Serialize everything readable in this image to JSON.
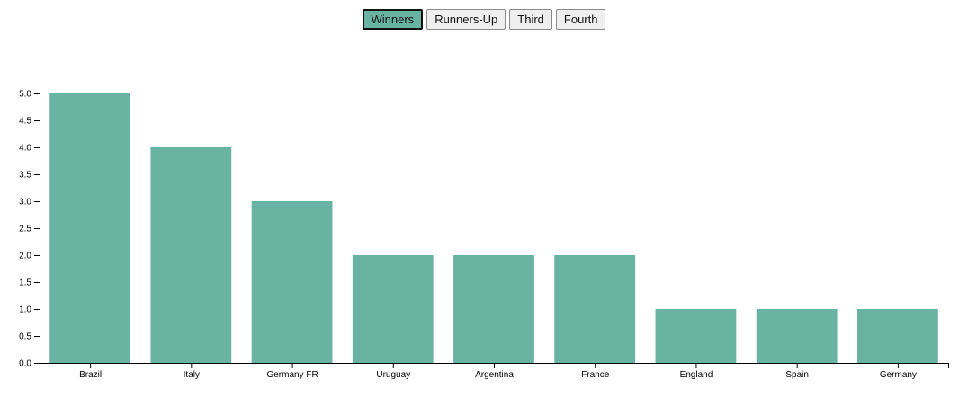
{
  "buttons": [
    {
      "label": "Winners",
      "active": true
    },
    {
      "label": "Runners-Up",
      "active": false
    },
    {
      "label": "Third",
      "active": false
    },
    {
      "label": "Fourth",
      "active": false
    }
  ],
  "colors": {
    "bar": "#69b3a2",
    "active_button_bg": "#69b3a2"
  },
  "chart_data": {
    "type": "bar",
    "categories": [
      "Brazil",
      "Italy",
      "Germany FR",
      "Uruguay",
      "Argentina",
      "France",
      "England",
      "Spain",
      "Germany"
    ],
    "values": [
      5,
      4,
      3,
      2,
      2,
      2,
      1,
      1,
      1
    ],
    "yticks": [
      "0.0",
      "0.5",
      "1.0",
      "1.5",
      "2.0",
      "2.5",
      "3.0",
      "3.5",
      "4.0",
      "4.5",
      "5.0"
    ],
    "ylim": [
      0,
      5
    ],
    "grid": false,
    "legend": false
  }
}
